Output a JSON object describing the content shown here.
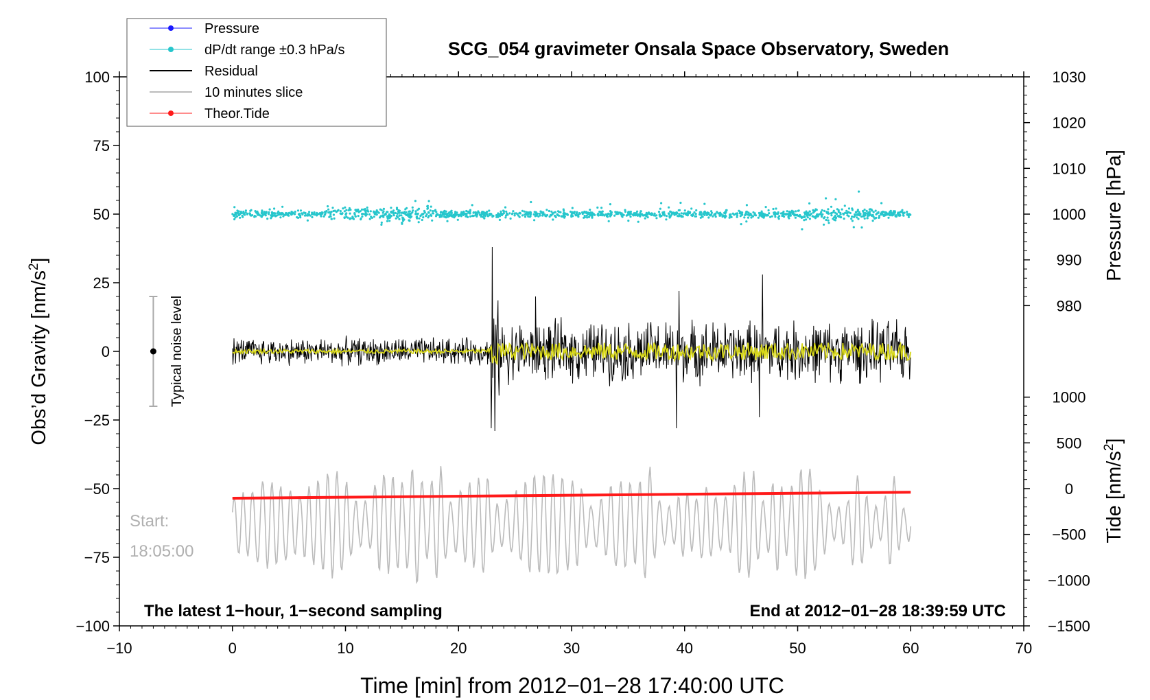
{
  "chart_data": {
    "type": "line",
    "title": "SCG_054 gravimeter Onsala Space Observatory, Sweden",
    "xlabel": "Time [min] from 2012−01−28 17:40:00 UTC",
    "ylabel_left": "Obs’d Gravity",
    "ylabel_left_unit": "[nm/s",
    "ylabel_left_unit_sup": "2",
    "ylabel_left_unit_end": "]",
    "ylabel_right_pressure": "Pressure [hPa]",
    "ylabel_right_tide": "Tide",
    "ylabel_right_tide_unit": "[nm/s",
    "ylabel_right_tide_sup": "2",
    "ylabel_right_tide_end": "]",
    "xlim": [
      -10,
      70
    ],
    "ylim": [
      -100,
      100
    ],
    "x_ticks": [
      "−10",
      "0",
      "10",
      "20",
      "30",
      "40",
      "50",
      "60",
      "70"
    ],
    "x_tick_values": [
      -10,
      0,
      10,
      20,
      30,
      40,
      50,
      60,
      70
    ],
    "y_ticks": [
      "100",
      "75",
      "50",
      "25",
      "0",
      "−25",
      "−50",
      "−75",
      "−100"
    ],
    "y_tick_values": [
      100,
      75,
      50,
      25,
      0,
      -25,
      -50,
      -75,
      -100
    ],
    "pressure_axis": {
      "ticks": [
        "1030",
        "1020",
        "1010",
        "1000",
        "990",
        "980"
      ],
      "values": [
        1030,
        1020,
        1010,
        1000,
        990,
        980
      ],
      "gravity_equiv": [
        100,
        83.33,
        66.67,
        50,
        33.33,
        16.67
      ]
    },
    "tide_axis": {
      "ticks": [
        "1000",
        "500",
        "0",
        "−500",
        "−1000",
        "−1500"
      ],
      "values": [
        1000,
        500,
        0,
        -500,
        -1000,
        -1500
      ],
      "gravity_equiv": [
        -16.67,
        -33.33,
        -50,
        -66.67,
        -83.33,
        -100
      ]
    },
    "legend": [
      {
        "label": "Pressure",
        "color": "#1a1aff",
        "marker": "dot"
      },
      {
        "label": "dP/dt range ±0.3 hPa/s",
        "color": "#26c6cc",
        "marker": "dot"
      },
      {
        "label": "Residual",
        "color": "#000000",
        "marker": "line"
      },
      {
        "label": "10 minutes slice",
        "color": "#bbbbbb",
        "marker": "line"
      },
      {
        "label": "Theor.Tide",
        "color": "#ff1a1a",
        "marker": "dot"
      }
    ],
    "series": [
      {
        "name": "dP/dt range ±0.3 hPa/s",
        "color": "#26c6cc",
        "x_range": [
          0,
          60
        ],
        "center": 50,
        "spread": 3
      },
      {
        "name": "Residual",
        "color": "#000000",
        "x_range": [
          0,
          60
        ],
        "center": 0,
        "spikes": [
          {
            "x": 23.0,
            "y": 38
          },
          {
            "x": 23.2,
            "y": -29
          },
          {
            "x": 22.9,
            "y": -28
          },
          {
            "x": 46.9,
            "y": 28
          },
          {
            "x": 39.3,
            "y": -28
          },
          {
            "x": 46.6,
            "y": -24
          },
          {
            "x": 26.8,
            "y": 20
          },
          {
            "x": 39.5,
            "y": 22
          }
        ]
      },
      {
        "name": "Residual smoothed",
        "color": "#d8d81a",
        "x_range": [
          0,
          60
        ],
        "center": 0
      },
      {
        "name": "10 minutes slice",
        "color": "#bbbbbb",
        "x_range": [
          0,
          60
        ],
        "center": -63,
        "min": -85,
        "max": -39
      },
      {
        "name": "Theor.Tide",
        "color": "#ff1a1a",
        "x": [
          0,
          60
        ],
        "y": [
          -53.5,
          -51.3
        ]
      }
    ],
    "noise_bar": {
      "label": "Typical noise level",
      "x": -7,
      "center": 0,
      "low": -20,
      "high": 20
    },
    "note_left": "The latest 1−hour, 1−second sampling",
    "note_right": "End at 2012−01−28 18:39:59 UTC",
    "start_label": "Start:",
    "start_time": "18:05:00"
  }
}
